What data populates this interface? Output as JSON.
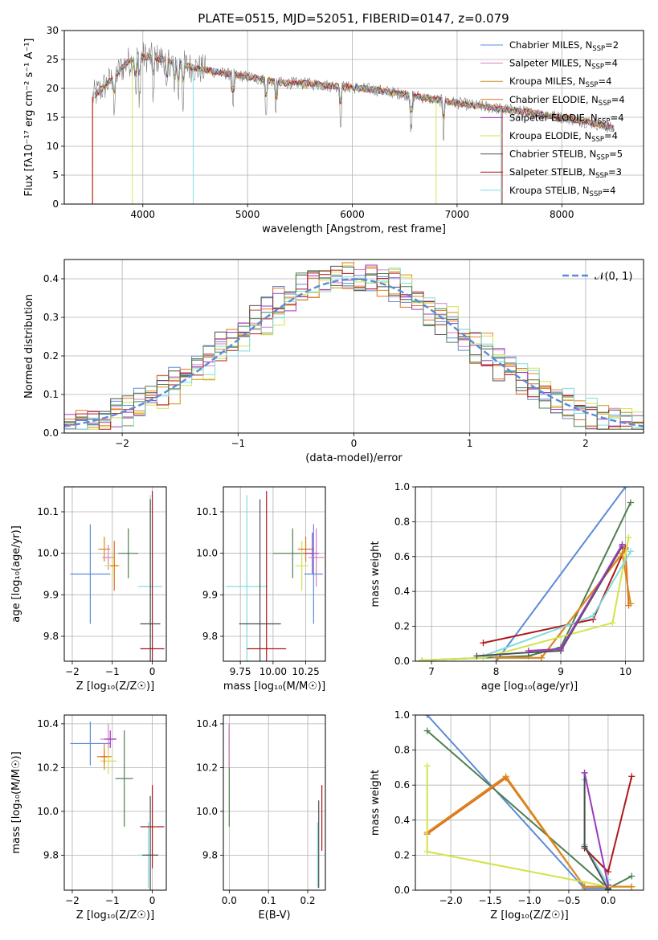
{
  "title": "PLATE=0515, MJD=52051, FIBERID=0147, z=0.079",
  "colors": {
    "Chabrier MILES": "#5b8bd8",
    "Salpeter MILES": "#d67fc0",
    "Kroupa MILES": "#d98a1c",
    "Chabrier ELODIE": "#e2701f",
    "Salpeter ELODIE": "#9b3bbf",
    "Kroupa ELODIE": "#d4e24a",
    "Chabrier STELIB": "#4e4e4e",
    "Salpeter STELIB": "#b01818",
    "Kroupa STELIB": "#7fdce0",
    "green_extra": "#4f7f4f",
    "data": "#7a7a7a",
    "gauss": "#5b8bd8"
  },
  "chart_data": [
    {
      "type": "line",
      "id": "spectrum",
      "xlabel": "wavelength [Angstrom, rest frame]",
      "ylabel": "Flux [fλ10⁻¹⁷ erg cm⁻² s⁻¹ A⁻¹]",
      "xlim": [
        3250,
        8780
      ],
      "ylim": [
        0,
        30
      ],
      "xticks": [
        4000,
        5000,
        6000,
        7000,
        8000
      ],
      "yticks": [
        0,
        5,
        10,
        15,
        20,
        25,
        30
      ],
      "legend": "top-right",
      "continuum_x": [
        3520,
        3700,
        3850,
        4000,
        4200,
        4500,
        4800,
        5000,
        5300,
        5600,
        5900,
        6200,
        6500,
        6800,
        7100,
        7400,
        7700,
        8000,
        8300,
        8500
      ],
      "continuum_y": [
        18.5,
        21.5,
        24.5,
        25.5,
        25.0,
        23.5,
        22.5,
        22.0,
        21.0,
        20.8,
        20.3,
        19.8,
        19.0,
        18.0,
        17.2,
        16.5,
        15.8,
        15.0,
        14.0,
        13.0
      ],
      "series": [
        {
          "name": "Chabrier MILES",
          "nssp": "2"
        },
        {
          "name": "Salpeter MILES",
          "nssp": "4"
        },
        {
          "name": "Kroupa MILES",
          "nssp": "4"
        },
        {
          "name": "Chabrier ELODIE",
          "nssp": "4"
        },
        {
          "name": "Salpeter ELODIE",
          "nssp": "4"
        },
        {
          "name": "Kroupa ELODIE",
          "nssp": "4"
        },
        {
          "name": "Chabrier STELIB",
          "nssp": "5"
        },
        {
          "name": "Salpeter STELIB",
          "nssp": "3"
        },
        {
          "name": "Kroupa STELIB",
          "nssp": "4"
        }
      ]
    },
    {
      "type": "line",
      "id": "residuals",
      "xlabel": "(data-model)/error",
      "ylabel": "Normed distribution",
      "xlim": [
        -2.5,
        2.5
      ],
      "ylim": [
        0,
        0.45
      ],
      "xticks": [
        -2,
        -1,
        0,
        1,
        2
      ],
      "yticks": [
        0.0,
        0.1,
        0.2,
        0.3,
        0.4
      ],
      "legend": "top-right",
      "legend_label": "𝒩(0, 1)",
      "bins": 50
    },
    {
      "type": "scatter",
      "id": "age-vs-Z",
      "xlabel": "Z [log₁₀(Z/Z☉)]",
      "ylabel": "age  [log₁₀(age/yr)]",
      "xlim": [
        -2.2,
        0.35
      ],
      "ylim": [
        9.74,
        10.16
      ],
      "xticks": [
        -2,
        -1,
        0
      ],
      "yticks": [
        9.8,
        9.9,
        10.0,
        10.1
      ],
      "points": [
        {
          "x": -1.55,
          "y": 9.95,
          "xerr": 0.5,
          "yerr": 0.12,
          "c": "#5b8bd8"
        },
        {
          "x": -1.2,
          "y": 10.01,
          "xerr": 0.15,
          "yerr": 0.03,
          "c": "#d98a1c"
        },
        {
          "x": -1.1,
          "y": 9.99,
          "xerr": 0.15,
          "yerr": 0.03,
          "c": "#d67fc0"
        },
        {
          "x": -1.0,
          "y": 9.97,
          "xerr": 0.2,
          "yerr": 0.03,
          "c": "#d4e24a"
        },
        {
          "x": -0.95,
          "y": 9.97,
          "xerr": 0.1,
          "yerr": 0.06,
          "c": "#e2701f"
        },
        {
          "x": -0.6,
          "y": 10.0,
          "xerr": 0.25,
          "yerr": 0.06,
          "c": "#4f7f4f"
        },
        {
          "x": -0.05,
          "y": 9.92,
          "xerr": 0.3,
          "yerr": 0.22,
          "c": "#7fdce0"
        },
        {
          "x": -0.05,
          "y": 9.83,
          "xerr": 0.25,
          "yerr": 0.3,
          "c": "#4e4e4e"
        },
        {
          "x": 0.0,
          "y": 9.77,
          "xerr": 0.3,
          "yerr": 0.38,
          "c": "#b01818"
        }
      ]
    },
    {
      "type": "scatter",
      "id": "age-vs-mass",
      "xlabel": "mass [log₁₀(M/M☉)]",
      "ylabel": "",
      "xlim": [
        9.62,
        10.4
      ],
      "ylim": [
        9.74,
        10.16
      ],
      "xticks": [
        9.75,
        10.0,
        10.25
      ],
      "yticks": [
        9.8,
        9.9,
        10.0,
        10.1
      ],
      "points": [
        {
          "x": 9.8,
          "y": 9.92,
          "xerr": 0.16,
          "yerr": 0.22,
          "c": "#7fdce0"
        },
        {
          "x": 9.9,
          "y": 9.83,
          "xerr": 0.16,
          "yerr": 0.3,
          "c": "#4e4e4e"
        },
        {
          "x": 9.95,
          "y": 9.77,
          "xerr": 0.15,
          "yerr": 0.38,
          "c": "#b01818"
        },
        {
          "x": 10.15,
          "y": 10.0,
          "xerr": 0.15,
          "yerr": 0.06,
          "c": "#4f7f4f"
        },
        {
          "x": 10.22,
          "y": 9.97,
          "xerr": 0.05,
          "yerr": 0.06,
          "c": "#d4e24a"
        },
        {
          "x": 10.25,
          "y": 10.01,
          "xerr": 0.06,
          "yerr": 0.03,
          "c": "#e2701f"
        },
        {
          "x": 10.3,
          "y": 10.0,
          "xerr": 0.05,
          "yerr": 0.05,
          "c": "#9b3bbf"
        },
        {
          "x": 10.33,
          "y": 9.99,
          "xerr": 0.06,
          "yerr": 0.07,
          "c": "#d67fc0"
        },
        {
          "x": 10.31,
          "y": 9.95,
          "xerr": 0.07,
          "yerr": 0.12,
          "c": "#5b8bd8"
        }
      ]
    },
    {
      "type": "line",
      "id": "mass-weight-vs-age",
      "xlabel": "age  [log₁₀(age/yr)]",
      "ylabel": "mass weight",
      "xlim": [
        6.75,
        10.28
      ],
      "ylim": [
        0,
        1
      ],
      "xticks": [
        7,
        8,
        9,
        10
      ],
      "yticks": [
        0.0,
        0.2,
        0.4,
        0.6,
        0.8,
        1.0
      ],
      "series": [
        {
          "c": "#5b8bd8",
          "x": [
            8.0,
            10.0
          ],
          "y": [
            0.0,
            1.0
          ]
        },
        {
          "c": "#4f7f4f",
          "x": [
            6.85,
            8.5,
            9.0,
            10.08
          ],
          "y": [
            0.005,
            0.03,
            0.08,
            0.91
          ]
        },
        {
          "c": "#b01818",
          "x": [
            7.8,
            9.5,
            10.0
          ],
          "y": [
            0.105,
            0.24,
            0.65
          ]
        },
        {
          "c": "#e2701f",
          "x": [
            8.0,
            8.7,
            10.0,
            10.05
          ],
          "y": [
            0.02,
            0.02,
            0.64,
            0.32
          ]
        },
        {
          "c": "#d98a1c",
          "x": [
            8.0,
            8.7,
            9.95,
            10.08
          ],
          "y": [
            0.02,
            0.02,
            0.62,
            0.33
          ]
        },
        {
          "c": "#d4e24a",
          "x": [
            6.85,
            7.8,
            9.8,
            10.05
          ],
          "y": [
            0.005,
            0.02,
            0.22,
            0.71
          ]
        },
        {
          "c": "#7fdce0",
          "x": [
            7.8,
            9.5,
            10.08
          ],
          "y": [
            0.03,
            0.26,
            0.63
          ]
        },
        {
          "c": "#4e4e4e",
          "x": [
            7.7,
            8.5,
            9.0,
            9.95
          ],
          "y": [
            0.03,
            0.05,
            0.06,
            0.66
          ]
        },
        {
          "c": "#9b3bbf",
          "x": [
            8.5,
            9.0,
            9.95
          ],
          "y": [
            0.06,
            0.07,
            0.67
          ]
        }
      ]
    },
    {
      "type": "scatter",
      "id": "mass-vs-Z",
      "xlabel": "Z [log₁₀(Z/Z☉)]",
      "ylabel": "mass [log₁₀(M/M☉)]",
      "xlim": [
        -2.2,
        0.35
      ],
      "ylim": [
        9.64,
        10.44
      ],
      "xticks": [
        -2,
        -1,
        0
      ],
      "yticks": [
        9.8,
        10.0,
        10.2,
        10.4
      ],
      "points": [
        {
          "x": -1.55,
          "y": 10.31,
          "xerr": 0.5,
          "yerr": 0.1,
          "c": "#5b8bd8"
        },
        {
          "x": -1.1,
          "y": 10.33,
          "xerr": 0.2,
          "yerr": 0.07,
          "c": "#d67fc0"
        },
        {
          "x": -1.05,
          "y": 10.33,
          "xerr": 0.15,
          "yerr": 0.04,
          "c": "#9b3bbf"
        },
        {
          "x": -1.2,
          "y": 10.25,
          "xerr": 0.18,
          "yerr": 0.06,
          "c": "#d98a1c"
        },
        {
          "x": -1.1,
          "y": 10.23,
          "xerr": 0.2,
          "yerr": 0.06,
          "c": "#d4e24a"
        },
        {
          "x": -1.2,
          "y": 10.25,
          "xerr": 0.1,
          "yerr": 0.03,
          "c": "#e2701f"
        },
        {
          "x": -0.7,
          "y": 10.15,
          "xerr": 0.22,
          "yerr": 0.22,
          "c": "#4f7f4f"
        },
        {
          "x": -0.1,
          "y": 9.8,
          "xerr": 0.25,
          "yerr": 0.15,
          "c": "#7fdce0"
        },
        {
          "x": -0.05,
          "y": 9.8,
          "xerr": 0.2,
          "yerr": 0.27,
          "c": "#4e4e4e"
        },
        {
          "x": 0.0,
          "y": 9.93,
          "xerr": 0.3,
          "yerr": 0.19,
          "c": "#b01818"
        }
      ]
    },
    {
      "type": "scatter",
      "id": "mass-vs-EBV",
      "xlabel": "E(B-V)",
      "ylabel": "",
      "xlim": [
        -0.015,
        0.245
      ],
      "ylim": [
        9.64,
        10.44
      ],
      "xticks": [
        0.0,
        0.1,
        0.2
      ],
      "yticks": [
        9.8,
        10.0,
        10.2,
        10.4
      ],
      "points": [
        {
          "x": 0.0,
          "y": 10.33,
          "xerr": 0,
          "yerr": 0.07,
          "c": "#9b3bbf"
        },
        {
          "x": 0.0,
          "y": 10.23,
          "xerr": 0,
          "yerr": 0.06,
          "c": "#d4e24a"
        },
        {
          "x": 0.0,
          "y": 10.15,
          "xerr": 0,
          "yerr": 0.22,
          "c": "#4f7f4f"
        },
        {
          "x": 0.0,
          "y": 10.3,
          "xerr": 0,
          "yerr": 0.1,
          "c": "#d67fc0"
        },
        {
          "x": 0.225,
          "y": 9.8,
          "xerr": 0,
          "yerr": 0.15,
          "c": "#7fdce0"
        },
        {
          "x": 0.228,
          "y": 9.85,
          "xerr": 0,
          "yerr": 0.2,
          "c": "#4e4e4e"
        },
        {
          "x": 0.236,
          "y": 9.97,
          "xerr": 0,
          "yerr": 0.15,
          "c": "#b01818"
        }
      ]
    },
    {
      "type": "line",
      "id": "mass-weight-vs-Z",
      "xlabel": "Z [log₁₀(Z/Z☉)]",
      "ylabel": "mass weight",
      "xlim": [
        -2.45,
        0.45
      ],
      "ylim": [
        0,
        1
      ],
      "xticks": [
        -2.0,
        -1.5,
        -1.0,
        -0.5,
        0.0
      ],
      "yticks": [
        0.0,
        0.2,
        0.4,
        0.6,
        0.8,
        1.0
      ],
      "series": [
        {
          "c": "#5b8bd8",
          "x": [
            -2.3,
            -0.3,
            0.0
          ],
          "y": [
            1.0,
            0.01,
            0.01
          ]
        },
        {
          "c": "#4f7f4f",
          "x": [
            -2.3,
            0.0,
            0.3
          ],
          "y": [
            0.91,
            0.01,
            0.08
          ]
        },
        {
          "c": "#e2701f",
          "x": [
            -2.3,
            -1.3,
            -0.3,
            0.3
          ],
          "y": [
            0.32,
            0.64,
            0.02,
            0.02
          ]
        },
        {
          "c": "#d98a1c",
          "x": [
            -2.3,
            -1.3,
            -0.3,
            0.3
          ],
          "y": [
            0.33,
            0.65,
            0.02,
            0.02
          ]
        },
        {
          "c": "#d4e24a",
          "x": [
            -2.3,
            -2.3,
            0.0
          ],
          "y": [
            0.71,
            0.22,
            0.02
          ]
        },
        {
          "c": "#7fdce0",
          "x": [
            -0.3,
            -0.3,
            0.0,
            0.0
          ],
          "y": [
            0.63,
            0.26,
            0.03,
            0.06
          ]
        },
        {
          "c": "#b01818",
          "x": [
            -0.3,
            0.0,
            0.3
          ],
          "y": [
            0.24,
            0.105,
            0.65
          ]
        },
        {
          "c": "#4e4e4e",
          "x": [
            -0.3,
            -0.3,
            0.0
          ],
          "y": [
            0.67,
            0.25,
            0.005
          ]
        },
        {
          "c": "#9b3bbf",
          "x": [
            -0.3,
            0.0
          ],
          "y": [
            0.67,
            0.03
          ]
        }
      ]
    }
  ]
}
